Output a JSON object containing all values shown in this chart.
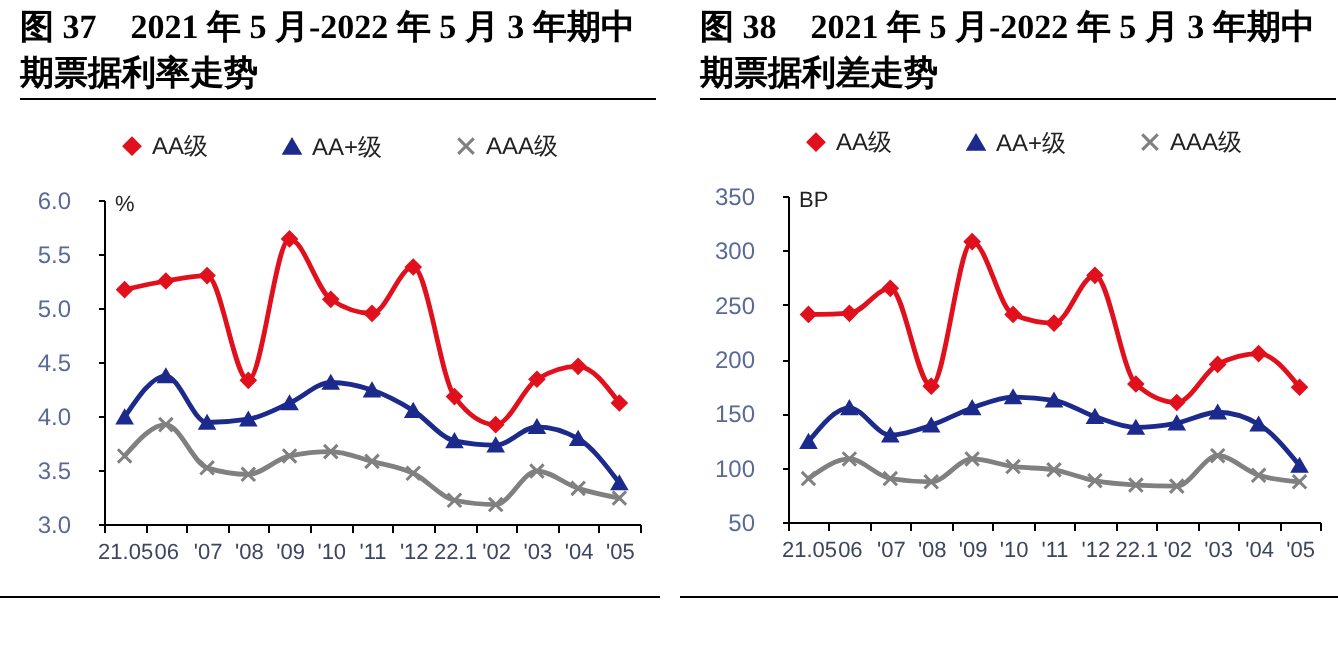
{
  "chart_data": [
    {
      "type": "line",
      "title": "图 37　2021 年 5 月-2022 年 5 月 3 年期中期票据利率走势",
      "ylabel": "%",
      "categories": [
        "21.05",
        "06",
        "'07",
        "'08",
        "'09",
        "'10",
        "'11",
        "'12",
        "22.1",
        "'02",
        "'03",
        "'04",
        "'05"
      ],
      "series": [
        {
          "name": "AA级",
          "color": "#e0101c",
          "marker": "diamond",
          "values": [
            5.17,
            5.25,
            5.3,
            4.33,
            5.64,
            5.08,
            4.95,
            5.38,
            4.18,
            3.92,
            4.34,
            4.46,
            4.12
          ]
        },
        {
          "name": "AA+级",
          "color": "#1c2a8c",
          "marker": "triangle",
          "values": [
            3.99,
            4.37,
            3.94,
            3.97,
            4.12,
            4.31,
            4.24,
            4.05,
            3.77,
            3.73,
            3.9,
            3.79,
            3.38
          ]
        },
        {
          "name": "AAA级",
          "color": "#808080",
          "marker": "cross",
          "values": [
            3.63,
            3.92,
            3.52,
            3.46,
            3.63,
            3.67,
            3.58,
            3.47,
            3.22,
            3.18,
            3.49,
            3.33,
            3.24
          ]
        }
      ],
      "ylim": [
        3,
        6
      ],
      "yticks": [
        {
          "value": 3,
          "label": "3.0"
        },
        3.5,
        {
          "value": 4,
          "label": "4.0"
        },
        4.5,
        {
          "value": 5,
          "label": "5.0"
        },
        5.5,
        {
          "value": 6,
          "label": "6.0"
        }
      ],
      "legend": "top"
    },
    {
      "type": "line",
      "title": "图 38　2021 年 5 月-2022 年 5 月 3 年期中期票据利差走势",
      "ylabel": "BP",
      "categories": [
        "21.05",
        "06",
        "'07",
        "'08",
        "'09",
        "'10",
        "'11",
        "'12",
        "22.1",
        "'02",
        "'03",
        "'04",
        "'05"
      ],
      "series": [
        {
          "name": "AA级",
          "color": "#e0101c",
          "marker": "diamond",
          "values": [
            241,
            242,
            265,
            175,
            308,
            241,
            233,
            277,
            177,
            160,
            195,
            205,
            174
          ]
        },
        {
          "name": "AA+级",
          "color": "#1c2a8c",
          "marker": "triangle",
          "values": [
            124,
            155,
            130,
            139,
            155,
            165,
            162,
            147,
            137,
            141,
            151,
            140,
            102
          ]
        },
        {
          "name": "AAA级",
          "color": "#808080",
          "marker": "cross",
          "values": [
            90,
            108,
            90,
            87,
            108,
            101,
            98,
            88,
            84,
            83,
            111,
            93,
            87
          ]
        }
      ],
      "ylim": [
        50,
        350
      ],
      "yticks": [
        50,
        100,
        150,
        200,
        250,
        300,
        350
      ],
      "legend": "top"
    }
  ]
}
